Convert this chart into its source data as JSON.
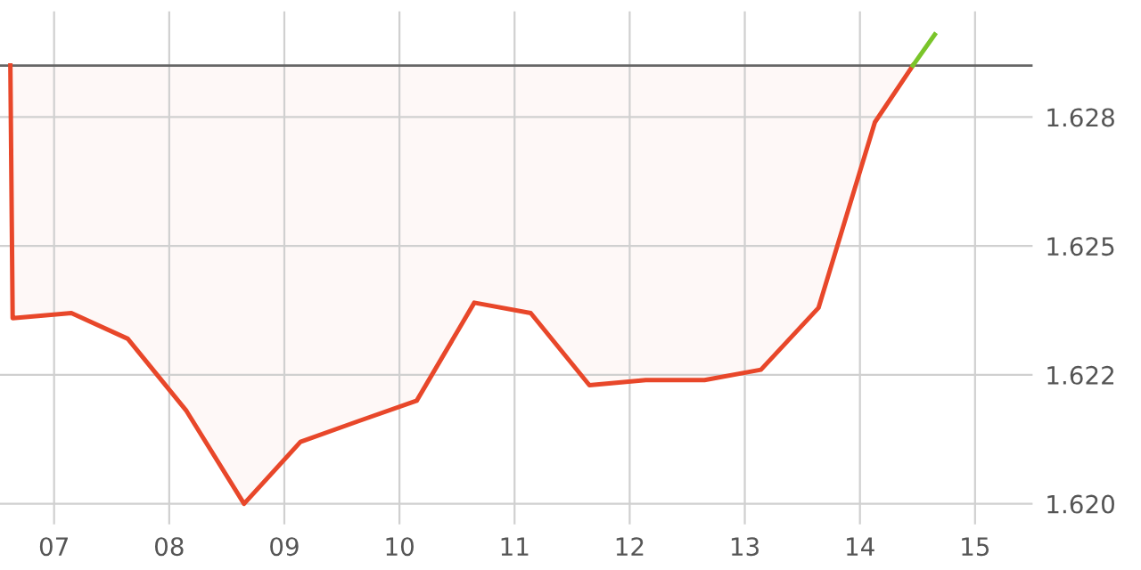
{
  "chart_data": {
    "type": "area",
    "series": [
      {
        "color": "#e8472a",
        "x": [
          6.62,
          6.64,
          7.15,
          7.64,
          8.15,
          8.65,
          9.14,
          9.64,
          10.15,
          10.65,
          11.14,
          11.65,
          12.14,
          12.65,
          13.14,
          13.64,
          14.13,
          14.46
        ],
        "values": [
          1.6285,
          1.6236,
          1.6237,
          1.6232,
          1.6218,
          1.62,
          1.6212,
          1.6216,
          1.622,
          1.6239,
          1.6237,
          1.6223,
          1.6224,
          1.6224,
          1.6226,
          1.6238,
          1.6274,
          1.6285
        ]
      },
      {
        "type": "line",
        "color": "#7ac52a",
        "x": [
          14.46,
          14.65
        ],
        "values": [
          1.6285,
          1.6291
        ]
      }
    ],
    "ref_lines": [
      {
        "axis": "y",
        "value": 1.6285,
        "color": "#666666"
      }
    ],
    "xlim": [
      6.53,
      15.5
    ],
    "xticks": [
      {
        "value": 7,
        "label": "07"
      },
      {
        "value": 8,
        "label": "08"
      },
      {
        "value": 9,
        "label": "09"
      },
      {
        "value": 10,
        "label": "10"
      },
      {
        "value": 11,
        "label": "11"
      },
      {
        "value": 12,
        "label": "12"
      },
      {
        "value": 13,
        "label": "13"
      },
      {
        "value": 14,
        "label": "14"
      },
      {
        "value": 15,
        "label": "15"
      }
    ],
    "ylim": [
      1.6196,
      1.62955
    ],
    "yticks": [
      {
        "value": 1.62,
        "label": "1.620"
      },
      {
        "value": 1.6225,
        "label": "1.622"
      },
      {
        "value": 1.625,
        "label": "1.625"
      },
      {
        "value": 1.6275,
        "label": "1.628"
      }
    ],
    "grid": true
  }
}
